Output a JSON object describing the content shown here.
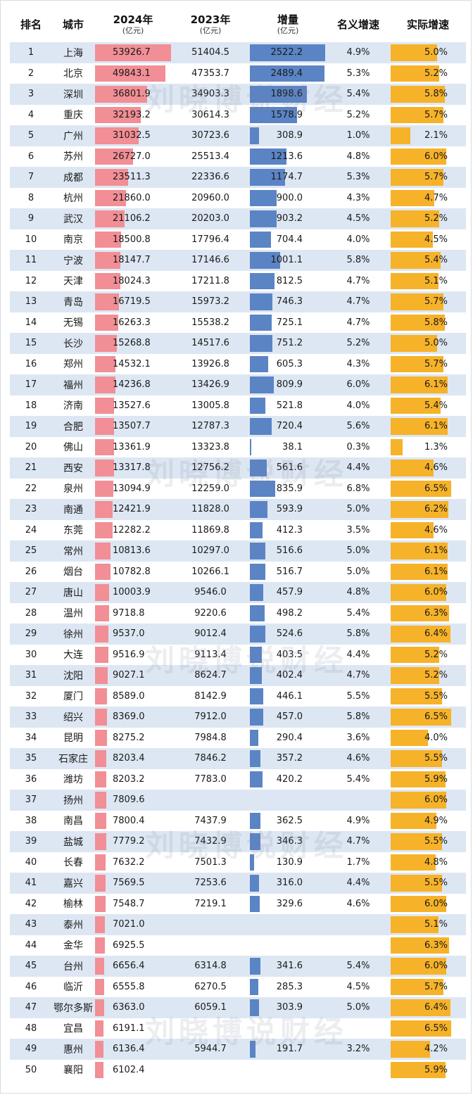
{
  "headers": {
    "rank": "排名",
    "city": "城市",
    "gdp2024": "2024年",
    "gdp2024_unit": "(亿元)",
    "gdp2023": "2023年",
    "gdp2023_unit": "(亿元)",
    "increase": "增量",
    "increase_unit": "(亿元)",
    "nominal": "名义增速",
    "real": "实际增速"
  },
  "watermark": "刘晓博说财经",
  "colors": {
    "gdp2024_bar": "#f28e95",
    "increase_bar": "#5b84c5",
    "real_bar": "#f6b229",
    "stripe": "#dde7f3"
  },
  "rows": [
    {
      "rank": "1",
      "city": "上海",
      "gdp2024": "53926.7",
      "gdp2023": "51404.5",
      "inc": "2522.2",
      "nominal": "4.9%",
      "real": "5.0%"
    },
    {
      "rank": "2",
      "city": "北京",
      "gdp2024": "49843.1",
      "gdp2023": "47353.7",
      "inc": "2489.4",
      "nominal": "5.3%",
      "real": "5.2%"
    },
    {
      "rank": "3",
      "city": "深圳",
      "gdp2024": "36801.9",
      "gdp2023": "34903.3",
      "inc": "1898.6",
      "nominal": "5.4%",
      "real": "5.8%"
    },
    {
      "rank": "4",
      "city": "重庆",
      "gdp2024": "32193.2",
      "gdp2023": "30614.3",
      "inc": "1578.9",
      "nominal": "5.2%",
      "real": "5.7%"
    },
    {
      "rank": "5",
      "city": "广州",
      "gdp2024": "31032.5",
      "gdp2023": "30723.6",
      "inc": "308.9",
      "nominal": "1.0%",
      "real": "2.1%"
    },
    {
      "rank": "6",
      "city": "苏州",
      "gdp2024": "26727.0",
      "gdp2023": "25513.4",
      "inc": "1213.6",
      "nominal": "4.8%",
      "real": "6.0%"
    },
    {
      "rank": "7",
      "city": "成都",
      "gdp2024": "23511.3",
      "gdp2023": "22336.6",
      "inc": "1174.7",
      "nominal": "5.3%",
      "real": "5.7%"
    },
    {
      "rank": "8",
      "city": "杭州",
      "gdp2024": "21860.0",
      "gdp2023": "20960.0",
      "inc": "900.0",
      "nominal": "4.3%",
      "real": "4.7%"
    },
    {
      "rank": "9",
      "city": "武汉",
      "gdp2024": "21106.2",
      "gdp2023": "20203.0",
      "inc": "903.2",
      "nominal": "4.5%",
      "real": "5.2%"
    },
    {
      "rank": "10",
      "city": "南京",
      "gdp2024": "18500.8",
      "gdp2023": "17796.4",
      "inc": "704.4",
      "nominal": "4.0%",
      "real": "4.5%"
    },
    {
      "rank": "11",
      "city": "宁波",
      "gdp2024": "18147.7",
      "gdp2023": "17146.6",
      "inc": "1001.1",
      "nominal": "5.8%",
      "real": "5.4%"
    },
    {
      "rank": "12",
      "city": "天津",
      "gdp2024": "18024.3",
      "gdp2023": "17211.8",
      "inc": "812.5",
      "nominal": "4.7%",
      "real": "5.1%"
    },
    {
      "rank": "13",
      "city": "青岛",
      "gdp2024": "16719.5",
      "gdp2023": "15973.2",
      "inc": "746.3",
      "nominal": "4.7%",
      "real": "5.7%"
    },
    {
      "rank": "14",
      "city": "无锡",
      "gdp2024": "16263.3",
      "gdp2023": "15538.2",
      "inc": "725.1",
      "nominal": "4.7%",
      "real": "5.8%"
    },
    {
      "rank": "15",
      "city": "长沙",
      "gdp2024": "15268.8",
      "gdp2023": "14517.6",
      "inc": "751.2",
      "nominal": "5.2%",
      "real": "5.0%"
    },
    {
      "rank": "16",
      "city": "郑州",
      "gdp2024": "14532.1",
      "gdp2023": "13926.8",
      "inc": "605.3",
      "nominal": "4.3%",
      "real": "5.7%"
    },
    {
      "rank": "17",
      "city": "福州",
      "gdp2024": "14236.8",
      "gdp2023": "13426.9",
      "inc": "809.9",
      "nominal": "6.0%",
      "real": "6.1%"
    },
    {
      "rank": "18",
      "city": "济南",
      "gdp2024": "13527.6",
      "gdp2023": "13005.8",
      "inc": "521.8",
      "nominal": "4.0%",
      "real": "5.4%"
    },
    {
      "rank": "19",
      "city": "合肥",
      "gdp2024": "13507.7",
      "gdp2023": "12787.3",
      "inc": "720.4",
      "nominal": "5.6%",
      "real": "6.1%"
    },
    {
      "rank": "20",
      "city": "佛山",
      "gdp2024": "13361.9",
      "gdp2023": "13323.8",
      "inc": "38.1",
      "nominal": "0.3%",
      "real": "1.3%"
    },
    {
      "rank": "21",
      "city": "西安",
      "gdp2024": "13317.8",
      "gdp2023": "12756.2",
      "inc": "561.6",
      "nominal": "4.4%",
      "real": "4.6%"
    },
    {
      "rank": "22",
      "city": "泉州",
      "gdp2024": "13094.9",
      "gdp2023": "12259.0",
      "inc": "835.9",
      "nominal": "6.8%",
      "real": "6.5%"
    },
    {
      "rank": "23",
      "city": "南通",
      "gdp2024": "12421.9",
      "gdp2023": "11828.0",
      "inc": "593.9",
      "nominal": "5.0%",
      "real": "6.2%"
    },
    {
      "rank": "24",
      "city": "东莞",
      "gdp2024": "12282.2",
      "gdp2023": "11869.8",
      "inc": "412.3",
      "nominal": "3.5%",
      "real": "4.6%"
    },
    {
      "rank": "25",
      "city": "常州",
      "gdp2024": "10813.6",
      "gdp2023": "10297.0",
      "inc": "516.6",
      "nominal": "5.0%",
      "real": "6.1%"
    },
    {
      "rank": "26",
      "city": "烟台",
      "gdp2024": "10782.8",
      "gdp2023": "10266.1",
      "inc": "516.7",
      "nominal": "5.0%",
      "real": "6.1%"
    },
    {
      "rank": "27",
      "city": "唐山",
      "gdp2024": "10003.9",
      "gdp2023": "9546.0",
      "inc": "457.9",
      "nominal": "4.8%",
      "real": "6.0%"
    },
    {
      "rank": "28",
      "city": "温州",
      "gdp2024": "9718.8",
      "gdp2023": "9220.6",
      "inc": "498.2",
      "nominal": "5.4%",
      "real": "6.3%"
    },
    {
      "rank": "29",
      "city": "徐州",
      "gdp2024": "9537.0",
      "gdp2023": "9012.4",
      "inc": "524.6",
      "nominal": "5.8%",
      "real": "6.4%"
    },
    {
      "rank": "30",
      "city": "大连",
      "gdp2024": "9516.9",
      "gdp2023": "9113.4",
      "inc": "403.5",
      "nominal": "4.4%",
      "real": "5.2%"
    },
    {
      "rank": "31",
      "city": "沈阳",
      "gdp2024": "9027.1",
      "gdp2023": "8624.7",
      "inc": "402.4",
      "nominal": "4.7%",
      "real": "5.2%"
    },
    {
      "rank": "32",
      "city": "厦门",
      "gdp2024": "8589.0",
      "gdp2023": "8142.9",
      "inc": "446.1",
      "nominal": "5.5%",
      "real": "5.5%"
    },
    {
      "rank": "33",
      "city": "绍兴",
      "gdp2024": "8369.0",
      "gdp2023": "7912.0",
      "inc": "457.0",
      "nominal": "5.8%",
      "real": "6.5%"
    },
    {
      "rank": "34",
      "city": "昆明",
      "gdp2024": "8275.2",
      "gdp2023": "7984.8",
      "inc": "290.4",
      "nominal": "3.6%",
      "real": "4.0%"
    },
    {
      "rank": "35",
      "city": "石家庄",
      "gdp2024": "8203.4",
      "gdp2023": "7846.2",
      "inc": "357.2",
      "nominal": "4.6%",
      "real": "5.5%"
    },
    {
      "rank": "36",
      "city": "潍坊",
      "gdp2024": "8203.2",
      "gdp2023": "7783.0",
      "inc": "420.2",
      "nominal": "5.4%",
      "real": "5.9%"
    },
    {
      "rank": "37",
      "city": "扬州",
      "gdp2024": "7809.6",
      "gdp2023": "",
      "inc": "",
      "nominal": "",
      "real": "6.0%"
    },
    {
      "rank": "38",
      "city": "南昌",
      "gdp2024": "7800.4",
      "gdp2023": "7437.9",
      "inc": "362.5",
      "nominal": "4.9%",
      "real": "4.9%"
    },
    {
      "rank": "39",
      "city": "盐城",
      "gdp2024": "7779.2",
      "gdp2023": "7432.9",
      "inc": "346.3",
      "nominal": "4.7%",
      "real": "5.5%"
    },
    {
      "rank": "40",
      "city": "长春",
      "gdp2024": "7632.2",
      "gdp2023": "7501.3",
      "inc": "130.9",
      "nominal": "1.7%",
      "real": "4.8%"
    },
    {
      "rank": "41",
      "city": "嘉兴",
      "gdp2024": "7569.5",
      "gdp2023": "7253.6",
      "inc": "316.0",
      "nominal": "4.4%",
      "real": "5.5%"
    },
    {
      "rank": "42",
      "city": "榆林",
      "gdp2024": "7548.7",
      "gdp2023": "7219.1",
      "inc": "329.6",
      "nominal": "4.6%",
      "real": "6.0%"
    },
    {
      "rank": "43",
      "city": "泰州",
      "gdp2024": "7021.0",
      "gdp2023": "",
      "inc": "",
      "nominal": "",
      "real": "5.1%"
    },
    {
      "rank": "44",
      "city": "金华",
      "gdp2024": "6925.5",
      "gdp2023": "",
      "inc": "",
      "nominal": "",
      "real": "6.3%"
    },
    {
      "rank": "45",
      "city": "台州",
      "gdp2024": "6656.4",
      "gdp2023": "6314.8",
      "inc": "341.6",
      "nominal": "5.4%",
      "real": "6.0%"
    },
    {
      "rank": "46",
      "city": "临沂",
      "gdp2024": "6555.8",
      "gdp2023": "6270.5",
      "inc": "285.3",
      "nominal": "4.5%",
      "real": "5.7%"
    },
    {
      "rank": "47",
      "city": "鄂尔多斯",
      "gdp2024": "6363.0",
      "gdp2023": "6059.1",
      "inc": "303.9",
      "nominal": "5.0%",
      "real": "6.4%"
    },
    {
      "rank": "48",
      "city": "宜昌",
      "gdp2024": "6191.1",
      "gdp2023": "",
      "inc": "",
      "nominal": "",
      "real": "6.5%"
    },
    {
      "rank": "49",
      "city": "惠州",
      "gdp2024": "6136.4",
      "gdp2023": "5944.7",
      "inc": "191.7",
      "nominal": "3.2%",
      "real": "4.2%"
    },
    {
      "rank": "50",
      "city": "襄阳",
      "gdp2024": "6102.4",
      "gdp2023": "",
      "inc": "",
      "nominal": "",
      "real": "5.9%"
    }
  ]
}
